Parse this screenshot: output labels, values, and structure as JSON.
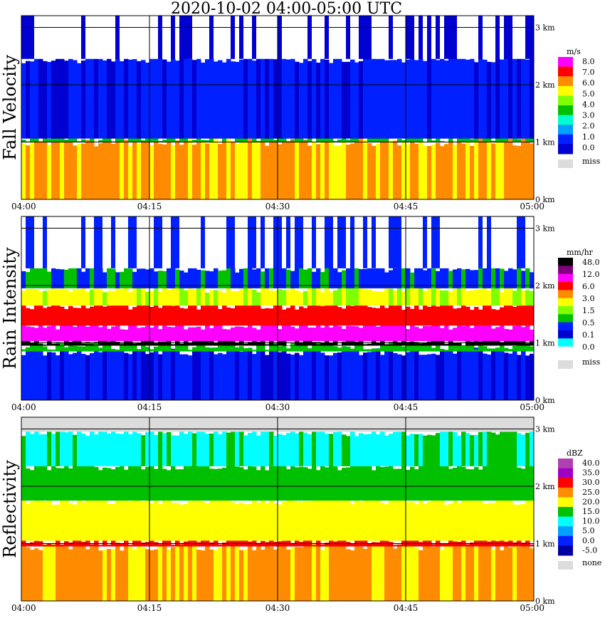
{
  "title": "2020-10-02   04:00-05:00 UTC",
  "chart_data": [
    {
      "type": "heatmap",
      "panel": "Fall Velocity",
      "ylabel": "Fall Velocity",
      "x_ticks": [
        "04:00",
        "04:15",
        "04:30",
        "04:45",
        "05:00"
      ],
      "y_ticks": [
        "0 km",
        "1 km",
        "2 km",
        "3 km"
      ],
      "ylim_km": [
        0,
        3.2
      ],
      "grid": true,
      "legend": {
        "unit": "m/s",
        "labels": [
          "8.0",
          "7.0",
          "6.0",
          "5.0",
          "4.0",
          "3.0",
          "2.0",
          "1.0",
          "0.0"
        ],
        "colors": [
          "#ff00ff",
          "#ff0000",
          "#ff8c00",
          "#ffff00",
          "#7fff00",
          "#00c000",
          "#00ffd0",
          "#00a0ff",
          "#0020ff",
          "#0000d0"
        ],
        "miss_label": "miss",
        "miss_color": "#dcdcdc"
      },
      "layers": [
        {
          "bottom_km": 0.0,
          "top_km": 1.0,
          "color": "#ff8c00",
          "mix": "#ffff00"
        },
        {
          "bottom_km": 1.0,
          "top_km": 1.06,
          "color": "#00c000"
        },
        {
          "bottom_km": 1.06,
          "top_km": 2.45,
          "color": "#0020ff",
          "mix": "#0000d0"
        },
        {
          "bottom_km": 2.45,
          "top_km": 3.2,
          "color": "#ffffff",
          "mix": "#0000d0"
        }
      ]
    },
    {
      "type": "heatmap",
      "panel": "Rain Intensity",
      "ylabel": "Rain Intensity",
      "x_ticks": [
        "04:00",
        "04:15",
        "04:30",
        "04:45",
        "05:00"
      ],
      "y_ticks": [
        "0 km",
        "1 km",
        "2 km",
        "3 km"
      ],
      "ylim_km": [
        0,
        3.2
      ],
      "grid": true,
      "legend": {
        "unit": "mm/hr",
        "labels": [
          "48.0",
          "12.0",
          "6.0",
          "3.0",
          "1.5",
          "0.5",
          "0.1",
          "0.0"
        ],
        "colors": [
          "#000000",
          "#800080",
          "#ff00ff",
          "#ff0000",
          "#ff8c00",
          "#ffff00",
          "#7fff00",
          "#00c000",
          "#0020ff",
          "#0000d0",
          "#00ffff",
          "#ffffff"
        ],
        "miss_label": "miss",
        "miss_color": "#dcdcdc"
      },
      "layers": [
        {
          "bottom_km": 0.0,
          "top_km": 0.85,
          "color": "#0020ff",
          "mix": "#0000d0"
        },
        {
          "bottom_km": 0.85,
          "top_km": 0.95,
          "color": "#00c000"
        },
        {
          "bottom_km": 0.95,
          "top_km": 1.03,
          "color": "#000000"
        },
        {
          "bottom_km": 1.03,
          "top_km": 1.3,
          "color": "#ff00ff"
        },
        {
          "bottom_km": 1.3,
          "top_km": 1.65,
          "color": "#ff0000"
        },
        {
          "bottom_km": 1.65,
          "top_km": 1.95,
          "color": "#ffff00",
          "mix": "#7fff00"
        },
        {
          "bottom_km": 1.95,
          "top_km": 2.3,
          "color": "#0020ff",
          "mix": "#00c000"
        },
        {
          "bottom_km": 2.3,
          "top_km": 3.2,
          "color": "#ffffff",
          "mix": "#0020ff"
        }
      ]
    },
    {
      "type": "heatmap",
      "panel": "Reflectivity",
      "ylabel": "Reflectivity",
      "x_ticks": [
        "04:00",
        "04:15",
        "04:30",
        "04:45",
        "05:00"
      ],
      "y_ticks": [
        "0 km",
        "1 km",
        "2 km",
        "3 km"
      ],
      "ylim_km": [
        0,
        3.2
      ],
      "grid": true,
      "legend": {
        "unit": "dBZ",
        "labels": [
          "40.0",
          "35.0",
          "30.0",
          "25.0",
          "20.0",
          "15.0",
          "10.0",
          "5.0",
          "0.0",
          "-5.0"
        ],
        "colors": [
          "#b040b0",
          "#a000c0",
          "#ff0000",
          "#ff8c00",
          "#ffff00",
          "#00c000",
          "#00ffff",
          "#00a0ff",
          "#0020ff",
          "#0000a0"
        ],
        "miss_label": "none",
        "miss_color": "#dcdcdc"
      },
      "layers": [
        {
          "bottom_km": 0.0,
          "top_km": 0.95,
          "color": "#ff8c00",
          "mix": "#ffff00"
        },
        {
          "bottom_km": 0.95,
          "top_km": 1.05,
          "color": "#ff0000"
        },
        {
          "bottom_km": 1.05,
          "top_km": 1.75,
          "color": "#ffff00"
        },
        {
          "bottom_km": 1.75,
          "top_km": 2.35,
          "color": "#00c000"
        },
        {
          "bottom_km": 2.35,
          "top_km": 2.95,
          "color": "#00ffff",
          "mix": "#00c000"
        },
        {
          "bottom_km": 2.95,
          "top_km": 3.2,
          "color": "#dcdcdc"
        }
      ]
    }
  ]
}
